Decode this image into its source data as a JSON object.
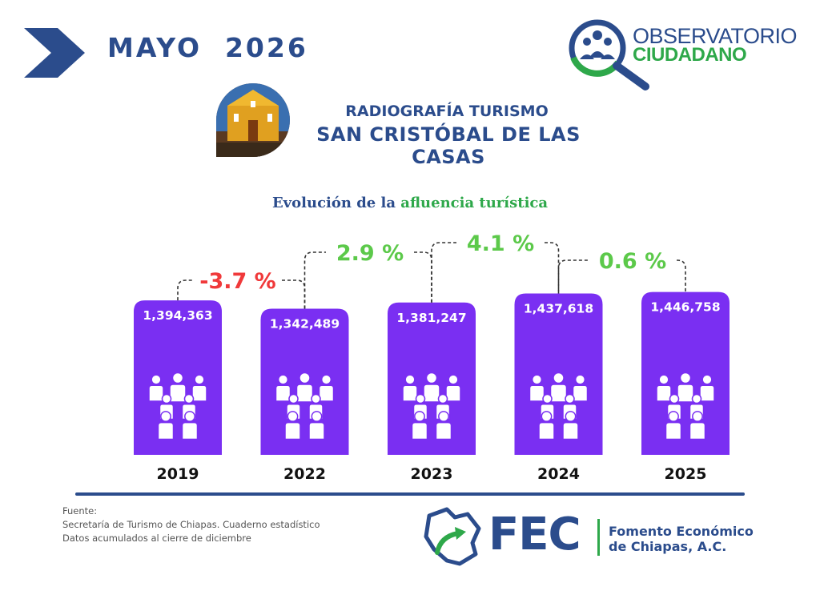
{
  "header": {
    "month_title": "MAYO  2026"
  },
  "observatorio_logo": {
    "line1": "OBSERVATORIO",
    "line2": "CIUDADANO"
  },
  "report": {
    "title_line1": "RADIOGRAFÍA TURISMO",
    "title_line2": "SAN CRISTÓBAL DE LAS CASAS",
    "subtitle_part1": "Evolución de la ",
    "subtitle_part2": "afluencia turística"
  },
  "colors": {
    "navy": "#2b4c8c",
    "green": "#2ea84a",
    "bar": "#7a2ff2",
    "red": "#f0393a",
    "light_green": "#5cc94a"
  },
  "chart_data": {
    "type": "bar",
    "title": "Evolución de la afluencia turística",
    "categories": [
      "2019",
      "2022",
      "2023",
      "2024",
      "2025"
    ],
    "values": [
      1394363,
      1342489,
      1381247,
      1437618,
      1446758
    ],
    "value_labels": [
      "1,394,363",
      "1,342,489",
      "1,381,247",
      "1,437,618",
      "1,446,758"
    ],
    "changes": [
      {
        "label": "-3.7 %",
        "color": "#f0393a"
      },
      {
        "label": "2.9 %",
        "color": "#5cc94a"
      },
      {
        "label": "4.1 %",
        "color": "#5cc94a"
      },
      {
        "label": "0.6 %",
        "color": "#5cc94a"
      }
    ],
    "icon": "people-group-icon",
    "xlabel": "",
    "ylabel": ""
  },
  "footer": {
    "source_label": "Fuente:",
    "source_line1": "Secretaría de Turismo de Chiapas. Cuaderno estadístico",
    "source_line2": "Datos acumulados al cierre de diciembre",
    "fec_acronym": "FEC",
    "fec_name_line1": "Fomento Económico",
    "fec_name_line2": "de Chiapas, A.C."
  }
}
